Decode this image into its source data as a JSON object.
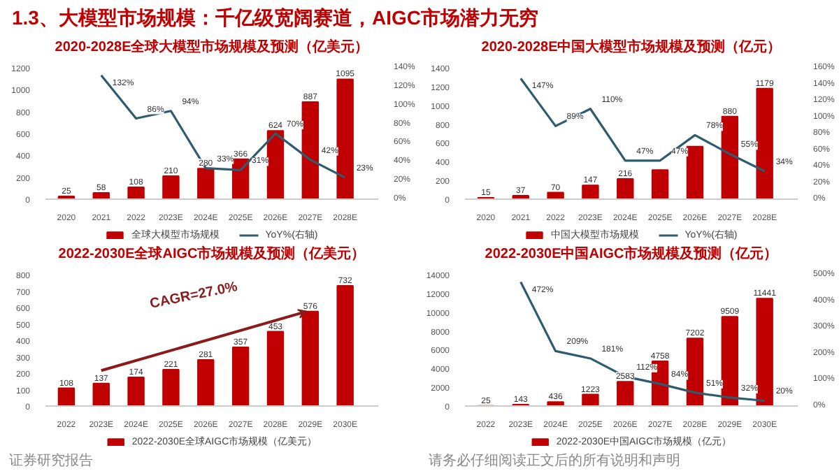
{
  "chart_data": [
    {
      "type": "other",
      "title": "1.3、大模型市场规模：千亿级宽阔赛道，AIGC市场潜力无穷",
      "annotations": [
        "证券研究报告",
        "请务必仔细阅读正文后的所有说明和声明"
      ]
    },
    {
      "type": "bar",
      "title": "2020-2028E全球大模型市场规模及预测（亿美元）",
      "categories": [
        "2020",
        "2021",
        "2022",
        "2023E",
        "2024E",
        "2025E",
        "2026E",
        "2027E",
        "2028E"
      ],
      "series": [
        {
          "name": "全球大模型市场规模",
          "color": "#c00000",
          "values": [
            25,
            58,
            108,
            210,
            280,
            366,
            624,
            887,
            1095
          ],
          "value_labels": [
            "25",
            "58",
            "108",
            "210",
            "280",
            "366",
            "624",
            "887",
            "1095"
          ]
        },
        {
          "name": "YoY%(右轴)",
          "type": "line",
          "axis": "y2",
          "color": "#2e5b6e",
          "values": [
            null,
            132,
            86,
            94,
            33,
            31,
            70,
            42,
            23
          ],
          "value_labels": [
            null,
            "132%",
            "86%",
            "94%",
            "33%",
            "31%",
            "70%",
            "42%",
            "23%"
          ]
        }
      ],
      "ylim": [
        0,
        1200
      ],
      "yticks": [
        0,
        200,
        400,
        600,
        800,
        1000,
        1200
      ],
      "y2lim": [
        0,
        140
      ],
      "y2ticks": [
        {
          "value": 0,
          "label": "0%"
        },
        {
          "value": 20,
          "label": "20%"
        },
        {
          "value": 40,
          "label": "40%"
        },
        {
          "value": 60,
          "label": "60%"
        },
        {
          "value": 80,
          "label": "80%"
        },
        {
          "value": 100,
          "label": "100%"
        },
        {
          "value": 120,
          "label": "120%"
        },
        {
          "value": 140,
          "label": "140%"
        }
      ],
      "legend": "bottom"
    },
    {
      "type": "bar",
      "title": "2020-2028E中国大模型市场规模及预测（亿元）",
      "categories": [
        "2020",
        "2021",
        "2022",
        "2023E",
        "2024E",
        "2025E",
        "2026E",
        "2027E",
        "2028E"
      ],
      "series": [
        {
          "name": "中国大模型市场规模",
          "color": "#c00000",
          "values": [
            15,
            37,
            70,
            147,
            216,
            310,
            560,
            880,
            1179
          ],
          "value_labels": [
            "15",
            "37",
            "70",
            "147",
            "216",
            null,
            null,
            "880",
            "1179"
          ]
        },
        {
          "name": "YoY%(右轴)",
          "type": "line",
          "axis": "y2",
          "color": "#2e5b6e",
          "values": [
            null,
            147,
            89,
            110,
            47,
            47,
            78,
            55,
            34
          ],
          "value_labels": [
            null,
            "147%",
            "89%",
            "110%",
            "47%",
            "47%",
            "78%",
            "55%",
            "34%"
          ]
        }
      ],
      "ylim": [
        0,
        1400
      ],
      "yticks": [
        0,
        200,
        400,
        600,
        800,
        1000,
        1200,
        1400
      ],
      "y2lim": [
        0,
        160
      ],
      "y2ticks": [
        {
          "value": 0,
          "label": "0%"
        },
        {
          "value": 20,
          "label": "20%"
        },
        {
          "value": 40,
          "label": "40%"
        },
        {
          "value": 60,
          "label": "60%"
        },
        {
          "value": 80,
          "label": "80%"
        },
        {
          "value": 100,
          "label": "100%"
        },
        {
          "value": 120,
          "label": "120%"
        },
        {
          "value": 140,
          "label": "140%"
        },
        {
          "value": 160,
          "label": "160%"
        }
      ],
      "legend": "bottom"
    },
    {
      "type": "bar",
      "title": "2022-2030E全球AIGC市场规模及预测（亿美元）",
      "categories": [
        "2022",
        "2023E",
        "2024E",
        "2025E",
        "2026E",
        "2027E",
        "2028E",
        "2029E",
        "2030E"
      ],
      "series": [
        {
          "name": "2022-2030E全球AIGC市场规模（亿美元）",
          "color": "#c00000",
          "values": [
            108,
            137,
            174,
            221,
            281,
            357,
            453,
            576,
            732
          ]
        }
      ],
      "data_labels": true,
      "ylim": [
        0,
        800
      ],
      "yticks": [
        0,
        100,
        200,
        300,
        400,
        500,
        600,
        700,
        800
      ],
      "annotations": [
        "CAGR=27.0%"
      ],
      "legend": "bottom"
    },
    {
      "type": "bar",
      "title": "2022-2030E中国AIGC市场规模及预测（亿元）",
      "categories": [
        "2022",
        "2023E",
        "2024E",
        "2025E",
        "2026E",
        "2027E",
        "2028E",
        "2029E",
        "2030E"
      ],
      "series": [
        {
          "name": "2022-2030E中国AIGC市场规模（亿元）",
          "color": "#c00000",
          "values": [
            25,
            143,
            436,
            1223,
            2583,
            4758,
            7202,
            9509,
            11441
          ],
          "value_labels": [
            "25",
            "143",
            "436",
            "1223",
            "2583",
            "4758",
            "7202",
            "9509",
            "11441"
          ]
        },
        {
          "type": "line",
          "axis": "y2",
          "color": "#2e5b6e",
          "values": [
            null,
            472,
            209,
            181,
            112,
            84,
            51,
            32,
            20
          ],
          "value_labels": [
            null,
            "472%",
            "209%",
            "181%",
            "112%",
            "84%",
            "51%",
            "32%",
            "20%"
          ]
        }
      ],
      "ylim": [
        0,
        14000
      ],
      "yticks": [
        0,
        2000,
        4000,
        6000,
        8000,
        10000,
        12000,
        14000
      ],
      "y2lim": [
        0,
        500
      ],
      "y2ticks": [
        {
          "value": 0,
          "label": "0%"
        },
        {
          "value": 100,
          "label": "100%"
        },
        {
          "value": 200,
          "label": "200%"
        },
        {
          "value": 300,
          "label": "300%"
        },
        {
          "value": 400,
          "label": "400%"
        },
        {
          "value": 500,
          "label": "500%"
        }
      ],
      "legend": "bottom"
    }
  ]
}
